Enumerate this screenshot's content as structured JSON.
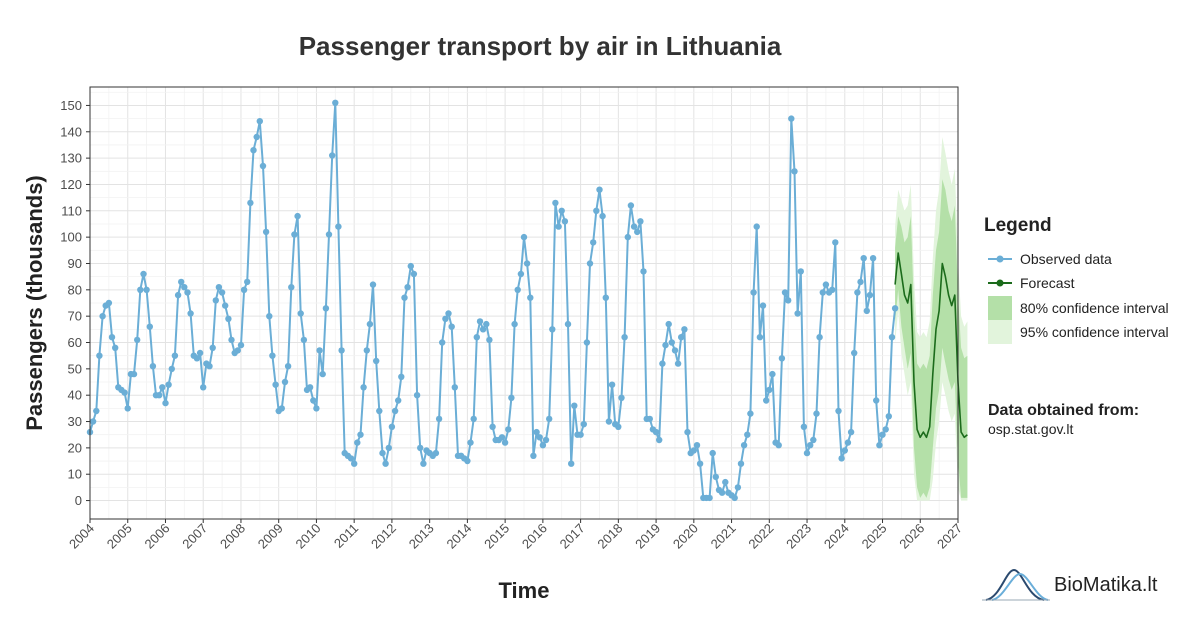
{
  "chart_data": {
    "type": "line",
    "title": "Passenger transport by air in Lithuania",
    "xlabel": "Time",
    "ylabel": "Passengers (thousands)",
    "xlim": [
      2004,
      2027
    ],
    "ylim": [
      -7,
      157
    ],
    "x_ticks": [
      "2004",
      "2005",
      "2006",
      "2007",
      "2008",
      "2009",
      "2010",
      "2011",
      "2012",
      "2013",
      "2014",
      "2015",
      "2016",
      "2017",
      "2018",
      "2019",
      "2020",
      "2021",
      "2022",
      "2023",
      "2024",
      "2025",
      "2026",
      "2027"
    ],
    "y_ticks": [
      "0",
      "10",
      "20",
      "30",
      "40",
      "50",
      "60",
      "70",
      "80",
      "90",
      "100",
      "110",
      "120",
      "130",
      "140",
      "150"
    ],
    "grid": true,
    "legend_position": "right",
    "series": [
      {
        "name": "Observed data",
        "color": "#6baed6",
        "start": 2004,
        "step_months": 1,
        "values": [
          26,
          30,
          34,
          55,
          70,
          74,
          75,
          62,
          58,
          43,
          42,
          41,
          35,
          48,
          48,
          61,
          80,
          86,
          80,
          66,
          51,
          40,
          40,
          43,
          37,
          44,
          50,
          55,
          78,
          83,
          81,
          79,
          71,
          55,
          54,
          56,
          43,
          52,
          51,
          58,
          76,
          81,
          79,
          74,
          69,
          61,
          56,
          57,
          59,
          80,
          83,
          113,
          133,
          138,
          144,
          127,
          102,
          70,
          55,
          44,
          34,
          35,
          45,
          51,
          81,
          101,
          108,
          71,
          61,
          42,
          43,
          38,
          35,
          57,
          48,
          73,
          101,
          131,
          151,
          104,
          57,
          18,
          17,
          16,
          14,
          22,
          25,
          43,
          57,
          67,
          82,
          53,
          34,
          18,
          14,
          20,
          28,
          34,
          38,
          47,
          77,
          81,
          89,
          86,
          40,
          20,
          14,
          19,
          18,
          17,
          18,
          31,
          60,
          69,
          71,
          66,
          43,
          17,
          17,
          16,
          15,
          22,
          31,
          62,
          68,
          65,
          67,
          61,
          28,
          23,
          23,
          24,
          22,
          27,
          39,
          67,
          80,
          86,
          100,
          90,
          77,
          17,
          26,
          24,
          21,
          23,
          31,
          65,
          113,
          104,
          110,
          106,
          67,
          14,
          36,
          25,
          25,
          29,
          60,
          90,
          98,
          110,
          118,
          108,
          77,
          30,
          44,
          29,
          28,
          39,
          62,
          100,
          112,
          104,
          102,
          106,
          87,
          31,
          31,
          27,
          26,
          23,
          52,
          59,
          67,
          60,
          57,
          52,
          62,
          65,
          26,
          18,
          19,
          21,
          14,
          1,
          1,
          1,
          18,
          9,
          4,
          3,
          7,
          3,
          2,
          1,
          5,
          14,
          21,
          25,
          33,
          79,
          104,
          62,
          74,
          38,
          42,
          48,
          22,
          21,
          54,
          79,
          76,
          145,
          125,
          71,
          87,
          28,
          18,
          21,
          23,
          33,
          62,
          79,
          82,
          79,
          80,
          98,
          34,
          16,
          19,
          22,
          26,
          56,
          79,
          83,
          92,
          72,
          78,
          92,
          38,
          21,
          25,
          27,
          32,
          62,
          73
        ]
      },
      {
        "name": "Forecast",
        "color": "#1b6b1b",
        "start": 2025.333,
        "step_months": 1,
        "values": [
          82,
          94,
          86,
          78,
          75,
          82,
          45,
          27,
          24,
          26,
          24,
          28,
          48,
          65,
          72,
          90,
          85,
          78,
          74,
          78,
          45,
          26,
          24,
          25
        ]
      }
    ],
    "intervals": [
      {
        "name": "80% confidence interval",
        "color": "#b4e0a8",
        "lower": [
          68,
          80,
          66,
          58,
          50,
          56,
          20,
          5,
          1,
          3,
          1,
          5,
          20,
          35,
          42,
          58,
          52,
          46,
          42,
          45,
          15,
          1,
          1,
          1
        ],
        "upper": [
          96,
          108,
          104,
          98,
          100,
          108,
          72,
          52,
          50,
          52,
          50,
          55,
          78,
          95,
          102,
          122,
          118,
          110,
          106,
          112,
          78,
          58,
          54,
          55
        ]
      },
      {
        "name": "95% confidence interval",
        "color": "#e2f4dc",
        "lower": [
          60,
          72,
          56,
          48,
          40,
          45,
          10,
          0,
          0,
          0,
          0,
          0,
          8,
          22,
          30,
          45,
          40,
          34,
          30,
          33,
          5,
          0,
          0,
          0
        ],
        "upper": [
          104,
          118,
          114,
          110,
          112,
          120,
          85,
          64,
          62,
          64,
          62,
          68,
          92,
          110,
          118,
          138,
          132,
          125,
          120,
          126,
          92,
          70,
          66,
          68
        ]
      }
    ]
  },
  "legend": {
    "title": "Legend",
    "items": [
      {
        "label": "Observed data",
        "kind": "line-point",
        "color": "#6baed6"
      },
      {
        "label": "Forecast",
        "kind": "line-point",
        "color": "#1b6b1b"
      },
      {
        "label": "80% confidence interval",
        "kind": "fill",
        "color": "#b4e0a8"
      },
      {
        "label": "95% confidence interval",
        "kind": "fill",
        "color": "#e2f4dc"
      }
    ]
  },
  "source": {
    "title": "Data obtained from:",
    "text": "osp.stat.gov.lt"
  },
  "brand": {
    "name": "BioMatika.lt",
    "icon": "bell-curve-logo-icon"
  },
  "colors": {
    "panel_background": "#ffffff",
    "grid": "#ebebeb",
    "axis_text": "#4d4d4d"
  }
}
